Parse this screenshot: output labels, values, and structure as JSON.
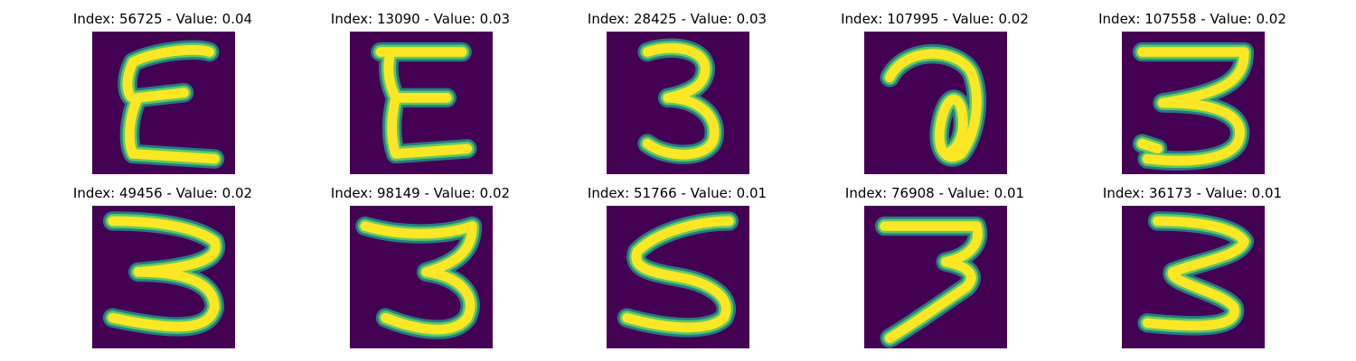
{
  "colors": {
    "background": "#440154",
    "edge": "#21918c",
    "mid": "#5ec962",
    "core": "#fde725"
  },
  "panels": [
    {
      "title": "Index: 56725 - Value: 0.04",
      "digit": "E-shape"
    },
    {
      "title": "Index: 13090 - Value: 0.03",
      "digit": "E-shape"
    },
    {
      "title": "Index: 28425 - Value: 0.03",
      "digit": "3"
    },
    {
      "title": "Index: 107995 - Value: 0.02",
      "digit": "a-shape"
    },
    {
      "title": "Index: 107558 - Value: 0.02",
      "digit": "3"
    },
    {
      "title": "Index: 49456 - Value: 0.02",
      "digit": "3"
    },
    {
      "title": "Index: 98149 - Value: 0.02",
      "digit": "3"
    },
    {
      "title": "Index: 51766 - Value: 0.01",
      "digit": "5"
    },
    {
      "title": "Index: 76908 - Value: 0.01",
      "digit": "7"
    },
    {
      "title": "Index: 36173 - Value: 0.01",
      "digit": "3"
    }
  ]
}
